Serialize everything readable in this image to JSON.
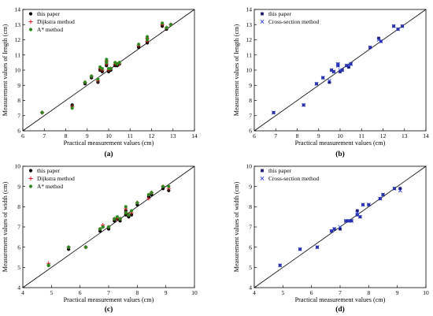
{
  "chart_data": [
    {
      "type": "scatter",
      "panel_label": "(a)",
      "xlabel": "Practical measurement values (cm)",
      "ylabel": "Measurement values of length (cm)",
      "xlim": [
        6,
        14
      ],
      "ylim": [
        6,
        14
      ],
      "xticks": [
        6,
        7,
        8,
        9,
        10,
        11,
        12,
        13,
        14
      ],
      "yticks": [
        6,
        7,
        8,
        9,
        10,
        11,
        12,
        13,
        14
      ],
      "reference_line": "y = x",
      "legend_position": "top-left",
      "series": [
        {
          "name": "this paper",
          "marker": "dot",
          "color": "#000000",
          "x": [
            6.9,
            8.3,
            8.9,
            9.2,
            9.5,
            9.6,
            9.7,
            9.9,
            9.9,
            10.0,
            10.1,
            10.3,
            10.4,
            10.5,
            11.4,
            11.8,
            11.8,
            12.5,
            12.7,
            12.9
          ],
          "y": [
            7.2,
            7.7,
            9.1,
            9.5,
            9.2,
            10.0,
            9.9,
            10.3,
            10.5,
            9.9,
            10.0,
            10.3,
            10.3,
            10.4,
            11.5,
            12.0,
            11.8,
            12.9,
            12.7,
            13.0
          ]
        },
        {
          "name": "Dijkstra method",
          "marker": "plus",
          "color": "#e4141b",
          "x": [
            6.9,
            8.3,
            8.9,
            9.2,
            9.5,
            9.6,
            9.7,
            9.9,
            9.9,
            10.0,
            10.1,
            10.3,
            10.4,
            10.5,
            11.4,
            11.8,
            11.8,
            12.5,
            12.7,
            12.9
          ],
          "y": [
            7.2,
            7.6,
            9.2,
            9.6,
            9.3,
            10.1,
            10.0,
            10.4,
            10.6,
            10.0,
            10.1,
            10.4,
            10.4,
            10.4,
            11.6,
            12.1,
            11.9,
            13.0,
            12.8,
            13.0
          ]
        },
        {
          "name": "A* method",
          "marker": "dot",
          "color": "#2d8a1f",
          "x": [
            6.9,
            8.3,
            8.9,
            9.2,
            9.5,
            9.6,
            9.7,
            9.9,
            9.9,
            10.0,
            10.1,
            10.3,
            10.4,
            10.5,
            11.4,
            11.8,
            11.8,
            12.5,
            12.7,
            12.9
          ],
          "y": [
            7.2,
            7.5,
            9.2,
            9.6,
            9.4,
            10.2,
            10.1,
            10.5,
            10.7,
            10.1,
            10.1,
            10.5,
            10.4,
            10.5,
            11.7,
            12.2,
            12.0,
            13.1,
            12.8,
            13.0
          ]
        }
      ]
    },
    {
      "type": "scatter",
      "panel_label": "(b)",
      "xlabel": "Practical measurement values (cm)",
      "ylabel": "Measurement values of length (cm)",
      "xlim": [
        6,
        14
      ],
      "ylim": [
        6,
        14
      ],
      "xticks": [
        6,
        7,
        8,
        9,
        10,
        11,
        12,
        13,
        14
      ],
      "yticks": [
        6,
        7,
        8,
        9,
        10,
        11,
        12,
        13,
        14
      ],
      "reference_line": "y = x",
      "legend_position": "top-left",
      "series": [
        {
          "name": "this paper",
          "marker": "square",
          "color": "#1a1a6e",
          "x": [
            6.9,
            8.3,
            8.9,
            9.2,
            9.5,
            9.6,
            9.7,
            9.9,
            9.9,
            10.0,
            10.1,
            10.3,
            10.4,
            10.5,
            11.4,
            11.8,
            11.9,
            12.5,
            12.7,
            12.9
          ],
          "y": [
            7.2,
            7.7,
            9.1,
            9.5,
            9.2,
            10.0,
            9.9,
            10.3,
            10.4,
            9.9,
            10.0,
            10.3,
            10.2,
            10.4,
            11.5,
            12.1,
            11.9,
            12.9,
            12.7,
            12.9
          ]
        },
        {
          "name": "Cross-section method",
          "marker": "cross",
          "color": "#2b3fd6",
          "x": [
            6.9,
            8.3,
            8.9,
            9.2,
            9.5,
            9.6,
            9.7,
            9.9,
            9.9,
            10.0,
            10.1,
            10.3,
            10.4,
            10.5,
            11.4,
            11.8,
            11.9,
            12.5,
            12.7,
            12.9
          ],
          "y": [
            7.2,
            7.7,
            9.1,
            9.5,
            9.3,
            10.0,
            9.9,
            10.3,
            10.4,
            10.0,
            10.0,
            10.3,
            10.3,
            10.4,
            11.5,
            12.0,
            11.9,
            12.9,
            12.7,
            12.9
          ]
        }
      ]
    },
    {
      "type": "scatter",
      "panel_label": "(c)",
      "xlabel": "Practical measurement values (cm)",
      "ylabel": "Measurement values of width (cm)",
      "xlim": [
        4,
        10
      ],
      "ylim": [
        4,
        10
      ],
      "xticks": [
        4,
        5,
        6,
        7,
        8,
        9,
        10
      ],
      "yticks": [
        4,
        5,
        6,
        7,
        8,
        9,
        10
      ],
      "reference_line": "y = x",
      "legend_position": "top-left",
      "series": [
        {
          "name": "this paper",
          "marker": "dot",
          "color": "#000000",
          "x": [
            4.9,
            5.6,
            6.2,
            6.7,
            6.8,
            7.0,
            7.2,
            7.3,
            7.4,
            7.6,
            7.6,
            7.7,
            7.8,
            8.0,
            8.4,
            8.5,
            8.9,
            9.1
          ],
          "y": [
            5.1,
            5.9,
            6.0,
            6.8,
            7.0,
            6.9,
            7.3,
            7.4,
            7.3,
            7.8,
            7.6,
            7.5,
            7.6,
            8.1,
            8.5,
            8.6,
            8.9,
            8.8
          ],
          "extra": []
        },
        {
          "name": "Dijkstra method",
          "marker": "plus",
          "color": "#e4141b",
          "x": [
            4.9,
            5.6,
            6.2,
            6.7,
            6.8,
            7.0,
            7.2,
            7.3,
            7.4,
            7.6,
            7.6,
            7.7,
            7.8,
            8.0,
            8.4,
            8.5,
            8.9,
            9.1
          ],
          "y": [
            5.2,
            6.0,
            6.0,
            6.9,
            7.1,
            7.0,
            7.4,
            7.4,
            7.4,
            7.9,
            7.7,
            7.6,
            7.7,
            8.2,
            8.4,
            8.7,
            9.0,
            8.9
          ]
        },
        {
          "name": "A* method",
          "marker": "dot",
          "color": "#2d8a1f",
          "x": [
            4.9,
            5.6,
            6.2,
            6.7,
            6.8,
            7.0,
            7.2,
            7.3,
            7.4,
            7.6,
            7.6,
            7.7,
            7.8,
            8.0,
            8.4,
            8.5,
            8.9,
            9.1
          ],
          "y": [
            5.1,
            6.0,
            6.0,
            6.9,
            7.0,
            7.0,
            7.4,
            7.5,
            7.4,
            8.0,
            7.7,
            7.6,
            7.8,
            8.2,
            8.6,
            8.7,
            9.0,
            9.0
          ]
        }
      ]
    },
    {
      "type": "scatter",
      "panel_label": "(d)",
      "xlabel": "Practical measurement values (cm)",
      "ylabel": "Measurement values of width (cm)",
      "xlim": [
        4,
        10
      ],
      "ylim": [
        4,
        10
      ],
      "xticks": [
        4,
        5,
        6,
        7,
        8,
        9,
        10
      ],
      "yticks": [
        4,
        5,
        6,
        7,
        8,
        9,
        10
      ],
      "reference_line": "y = x",
      "legend_position": "top-left",
      "series": [
        {
          "name": "this paper",
          "marker": "square",
          "color": "#1a1a6e",
          "x": [
            4.9,
            5.6,
            6.2,
            6.7,
            6.8,
            7.0,
            7.2,
            7.3,
            7.4,
            7.6,
            7.6,
            7.7,
            7.8,
            8.0,
            8.4,
            8.5,
            8.9,
            9.1
          ],
          "y": [
            5.1,
            5.9,
            6.0,
            6.8,
            6.9,
            6.9,
            7.3,
            7.3,
            7.3,
            7.8,
            7.6,
            7.5,
            8.1,
            8.1,
            8.4,
            8.6,
            8.9,
            8.9
          ]
        },
        {
          "name": "Cross-section method",
          "marker": "cross",
          "color": "#2b3fd6",
          "x": [
            4.9,
            5.6,
            6.2,
            6.7,
            6.8,
            7.0,
            7.2,
            7.3,
            7.4,
            7.6,
            7.6,
            7.7,
            7.8,
            8.0,
            8.4,
            8.5,
            8.9,
            9.1
          ],
          "y": [
            5.1,
            5.9,
            6.0,
            6.8,
            6.9,
            7.0,
            7.3,
            7.3,
            7.3,
            7.7,
            7.6,
            7.5,
            8.1,
            8.1,
            8.4,
            8.6,
            8.9,
            8.8
          ]
        }
      ]
    }
  ]
}
